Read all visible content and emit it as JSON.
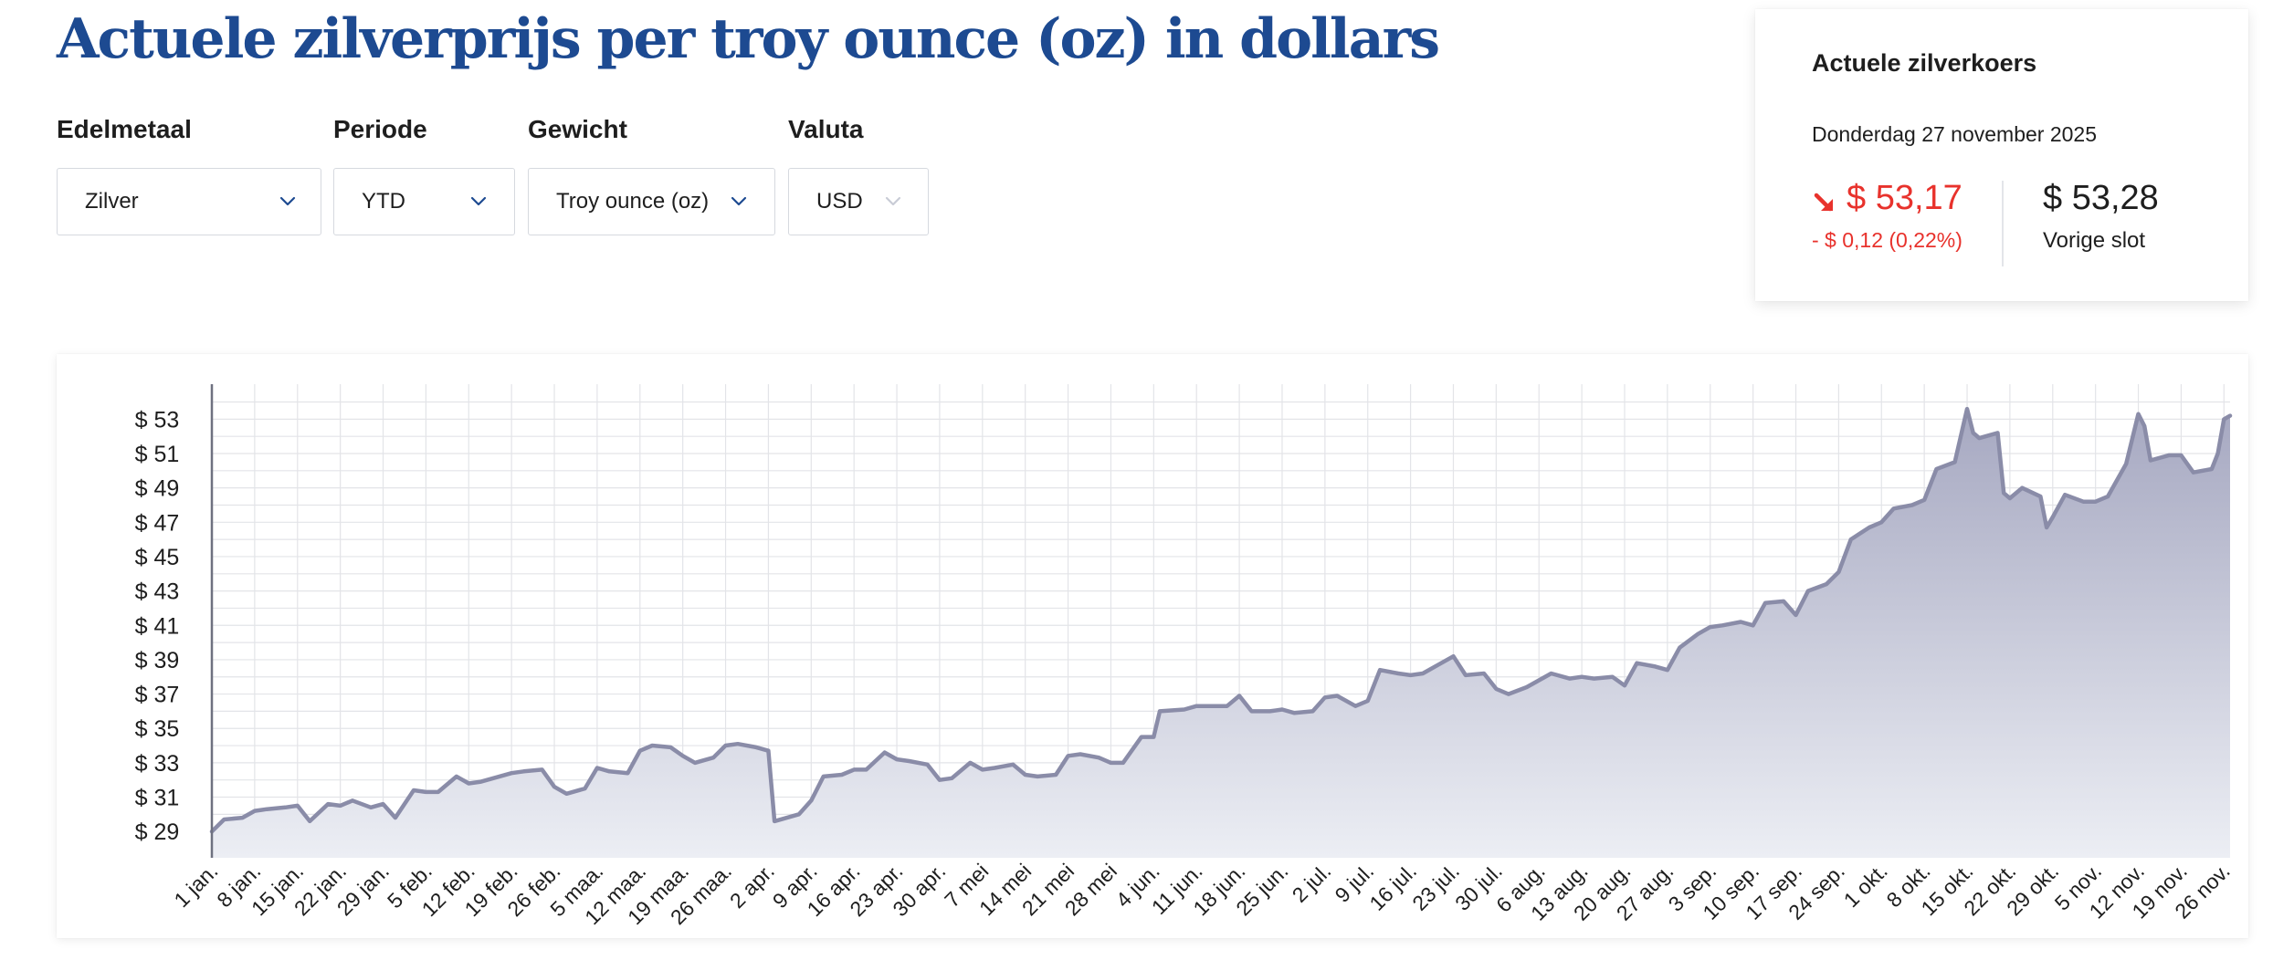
{
  "page": {
    "title": "Actuele zilverprijs per troy ounce (oz) in dollars"
  },
  "filters": [
    {
      "label": "Edelmetaal",
      "value": "Zilver"
    },
    {
      "label": "Periode",
      "value": "YTD"
    },
    {
      "label": "Gewicht",
      "value": "Troy ounce (oz)"
    },
    {
      "label": "Valuta",
      "value": "USD"
    }
  ],
  "rate_card": {
    "title": "Actuele zilverkoers",
    "date": "Donderdag 27 november 2025",
    "current": "$ 53,17",
    "change": "- $ 0,12 (0,22%)",
    "previous": "$ 53,28",
    "previous_label": "Vorige slot",
    "trend": "down",
    "down_color": "#e8322c"
  },
  "colors": {
    "title": "#1d4a91",
    "line": "#8a8ca8",
    "area_top": "#a6a8c1",
    "area_bottom": "#eceef4",
    "grid": "#e3e4e8",
    "select_chevron": "#1d4a91"
  },
  "icons": {
    "dropdown": "chevron-down-icon",
    "trend": "arrow-down-right-icon"
  },
  "chart_data": {
    "type": "area",
    "title": "",
    "xlabel": "",
    "ylabel": "",
    "ylim": [
      28,
      54.4
    ],
    "y_ticks": [
      29,
      31,
      33,
      35,
      37,
      39,
      41,
      43,
      45,
      47,
      49,
      51,
      53
    ],
    "y_tick_labels": [
      "$ 29",
      "$ 31",
      "$ 33",
      "$ 35",
      "$ 37",
      "$ 39",
      "$ 41",
      "$ 43",
      "$ 45",
      "$ 47",
      "$ 49",
      "$ 51",
      "$ 53"
    ],
    "x_tick_labels": [
      "1 jan.",
      "8 jan.",
      "15 jan.",
      "22 jan.",
      "29 jan.",
      "5 feb.",
      "12 feb.",
      "19 feb.",
      "26 feb.",
      "5 maa.",
      "12 maa.",
      "19 maa.",
      "26 maa.",
      "2 apr.",
      "9 apr.",
      "16 apr.",
      "23 apr.",
      "30 apr.",
      "7 mei",
      "14 mei",
      "21 mei",
      "28 mei",
      "4 jun.",
      "11 jun.",
      "18 jun.",
      "25 jun.",
      "2 jul.",
      "9 jul.",
      "16 jul.",
      "23 jul.",
      "30 jul.",
      "6 aug.",
      "13 aug.",
      "20 aug.",
      "27 aug.",
      "3 sep.",
      "10 sep.",
      "17 sep.",
      "24 sep.",
      "1 okt.",
      "8 okt.",
      "15 okt.",
      "22 okt.",
      "29 okt.",
      "5 nov.",
      "12 nov.",
      "19 nov.",
      "26 nov."
    ],
    "grid": true,
    "legend": "none",
    "series": [
      {
        "points": [
          [
            "1 jan.",
            29.0
          ],
          [
            "3 jan.",
            29.7
          ],
          [
            "6 jan.",
            29.8
          ],
          [
            "8 jan.",
            30.2
          ],
          [
            "10 jan.",
            30.3
          ],
          [
            "13 jan.",
            30.4
          ],
          [
            "15 jan.",
            30.5
          ],
          [
            "17 jan.",
            29.6
          ],
          [
            "20 jan.",
            30.6
          ],
          [
            "22 jan.",
            30.5
          ],
          [
            "24 jan.",
            30.8
          ],
          [
            "27 jan.",
            30.4
          ],
          [
            "29 jan.",
            30.6
          ],
          [
            "31 jan.",
            29.8
          ],
          [
            "3 feb.",
            31.4
          ],
          [
            "5 feb.",
            31.3
          ],
          [
            "7 feb.",
            31.3
          ],
          [
            "10 feb.",
            32.2
          ],
          [
            "12 feb.",
            31.8
          ],
          [
            "14 feb.",
            31.9
          ],
          [
            "17 feb.",
            32.2
          ],
          [
            "19 feb.",
            32.4
          ],
          [
            "21 feb.",
            32.5
          ],
          [
            "24 feb.",
            32.6
          ],
          [
            "26 feb.",
            31.6
          ],
          [
            "28 feb.",
            31.2
          ],
          [
            "3 maa.",
            31.5
          ],
          [
            "5 maa.",
            32.7
          ],
          [
            "7 maa.",
            32.5
          ],
          [
            "10 maa.",
            32.4
          ],
          [
            "12 maa.",
            33.7
          ],
          [
            "14 maa.",
            34.0
          ],
          [
            "17 maa.",
            33.9
          ],
          [
            "19 maa.",
            33.4
          ],
          [
            "21 maa.",
            33.0
          ],
          [
            "24 maa.",
            33.3
          ],
          [
            "26 maa.",
            34.0
          ],
          [
            "28 maa.",
            34.1
          ],
          [
            "31 maa.",
            33.9
          ],
          [
            "2 apr.",
            33.7
          ],
          [
            "3 apr.",
            29.6
          ],
          [
            "7 apr.",
            30.0
          ],
          [
            "9 apr.",
            30.8
          ],
          [
            "11 apr.",
            32.2
          ],
          [
            "14 apr.",
            32.3
          ],
          [
            "16 apr.",
            32.6
          ],
          [
            "18 apr.",
            32.6
          ],
          [
            "21 apr.",
            33.6
          ],
          [
            "23 apr.",
            33.2
          ],
          [
            "25 apr.",
            33.1
          ],
          [
            "28 apr.",
            32.9
          ],
          [
            "30 apr.",
            32.0
          ],
          [
            "2 mei",
            32.1
          ],
          [
            "5 mei",
            33.0
          ],
          [
            "7 mei",
            32.6
          ],
          [
            "9 mei",
            32.7
          ],
          [
            "12 mei",
            32.9
          ],
          [
            "14 mei",
            32.3
          ],
          [
            "16 mei",
            32.2
          ],
          [
            "19 mei",
            32.3
          ],
          [
            "21 mei",
            33.4
          ],
          [
            "23 mei",
            33.5
          ],
          [
            "26 mei",
            33.3
          ],
          [
            "28 mei",
            33.0
          ],
          [
            "30 mei",
            33.0
          ],
          [
            "2 jun.",
            34.5
          ],
          [
            "4 jun.",
            34.5
          ],
          [
            "5 jun.",
            36.0
          ],
          [
            "9 jun.",
            36.1
          ],
          [
            "11 jun.",
            36.3
          ],
          [
            "13 jun.",
            36.3
          ],
          [
            "16 jun.",
            36.3
          ],
          [
            "18 jun.",
            36.9
          ],
          [
            "20 jun.",
            36.0
          ],
          [
            "23 jun.",
            36.0
          ],
          [
            "25 jun.",
            36.1
          ],
          [
            "27 jun.",
            35.9
          ],
          [
            "30 jun.",
            36.0
          ],
          [
            "2 jul.",
            36.8
          ],
          [
            "4 jul.",
            36.9
          ],
          [
            "7 jul.",
            36.3
          ],
          [
            "9 jul.",
            36.6
          ],
          [
            "11 jul.",
            38.4
          ],
          [
            "14 jul.",
            38.2
          ],
          [
            "16 jul.",
            38.1
          ],
          [
            "18 jul.",
            38.2
          ],
          [
            "21 jul.",
            38.8
          ],
          [
            "23 jul.",
            39.2
          ],
          [
            "25 jul.",
            38.1
          ],
          [
            "28 jul.",
            38.2
          ],
          [
            "30 jul.",
            37.3
          ],
          [
            "1 aug.",
            37.0
          ],
          [
            "4 aug.",
            37.4
          ],
          [
            "6 aug.",
            37.8
          ],
          [
            "8 aug.",
            38.2
          ],
          [
            "11 aug.",
            37.9
          ],
          [
            "13 aug.",
            38.0
          ],
          [
            "15 aug.",
            37.9
          ],
          [
            "18 aug.",
            38.0
          ],
          [
            "20 aug.",
            37.5
          ],
          [
            "22 aug.",
            38.8
          ],
          [
            "25 aug.",
            38.6
          ],
          [
            "27 aug.",
            38.4
          ],
          [
            "29 aug.",
            39.7
          ],
          [
            "1 sep.",
            40.5
          ],
          [
            "3 sep.",
            40.9
          ],
          [
            "5 sep.",
            41.0
          ],
          [
            "8 sep.",
            41.2
          ],
          [
            "10 sep.",
            41.0
          ],
          [
            "12 sep.",
            42.3
          ],
          [
            "15 sep.",
            42.4
          ],
          [
            "17 sep.",
            41.6
          ],
          [
            "19 sep.",
            43.0
          ],
          [
            "22 sep.",
            43.4
          ],
          [
            "24 sep.",
            44.1
          ],
          [
            "26 sep.",
            46.0
          ],
          [
            "29 sep.",
            46.7
          ],
          [
            "1 okt.",
            47.0
          ],
          [
            "3 okt.",
            47.8
          ],
          [
            "6 okt.",
            48.0
          ],
          [
            "8 okt.",
            48.3
          ],
          [
            "10 okt.",
            50.1
          ],
          [
            "13 okt.",
            50.5
          ],
          [
            "15 okt.",
            53.6
          ],
          [
            "16 okt.",
            52.2
          ],
          [
            "17 okt.",
            51.9
          ],
          [
            "20 okt.",
            52.2
          ],
          [
            "21 okt.",
            48.7
          ],
          [
            "22 okt.",
            48.4
          ],
          [
            "24 okt.",
            49.0
          ],
          [
            "27 okt.",
            48.5
          ],
          [
            "28 okt.",
            46.7
          ],
          [
            "29 okt.",
            47.3
          ],
          [
            "31 okt.",
            48.6
          ],
          [
            "3 nov.",
            48.2
          ],
          [
            "5 nov.",
            48.2
          ],
          [
            "7 nov.",
            48.5
          ],
          [
            "10 nov.",
            50.4
          ],
          [
            "12 nov.",
            53.3
          ],
          [
            "13 nov.",
            52.6
          ],
          [
            "14 nov.",
            50.6
          ],
          [
            "17 nov.",
            50.9
          ],
          [
            "19 nov.",
            50.9
          ],
          [
            "21 nov.",
            49.9
          ],
          [
            "24 nov.",
            50.1
          ],
          [
            "25 nov.",
            51.0
          ],
          [
            "26 nov.",
            53.0
          ],
          [
            "27 nov.",
            53.2
          ]
        ]
      }
    ]
  }
}
